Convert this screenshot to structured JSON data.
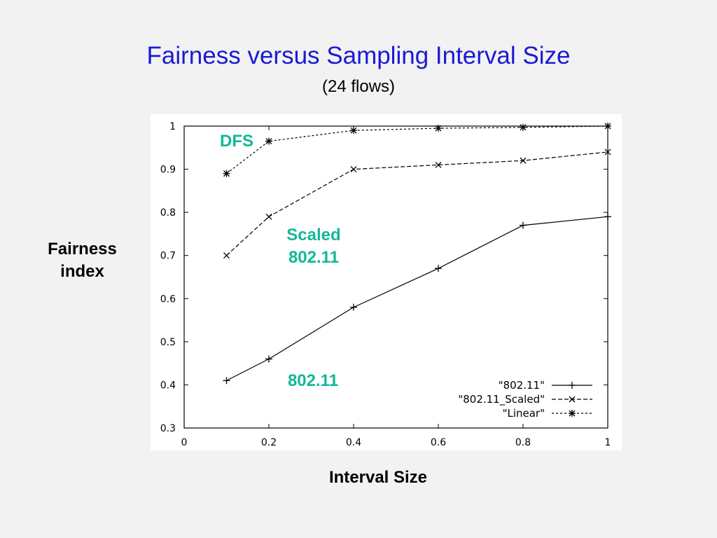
{
  "colors": {
    "title": "#1a1ad6",
    "annotation": "#12b897",
    "background": "#f2f2f2",
    "plot_background": "#ffffff"
  },
  "annotations": {
    "dfs": "DFS",
    "scaled_line1": "Scaled",
    "scaled_line2": "802.11",
    "plain": "802.11"
  },
  "chart_data": {
    "type": "line",
    "title": "Fairness versus Sampling Interval Size",
    "subtitle": "(24 flows)",
    "xlabel": "Interval Size",
    "ylabel_line1": "Fairness",
    "ylabel_line2": "index",
    "xlim": [
      0,
      1
    ],
    "ylim": [
      0.3,
      1
    ],
    "xticks": [
      0,
      0.2,
      0.4,
      0.6,
      0.8,
      1
    ],
    "xtick_labels": [
      "0",
      "0.2",
      "0.4",
      "0.6",
      "0.8",
      "1"
    ],
    "yticks": [
      0.3,
      0.4,
      0.5,
      0.6,
      0.7,
      0.8,
      0.9,
      1
    ],
    "ytick_labels": [
      "0.3",
      "0.4",
      "0.5",
      "0.6",
      "0.7",
      "0.8",
      "0.9",
      "1"
    ],
    "grid": false,
    "legend_position": "bottom-right",
    "x": [
      0.1,
      0.2,
      0.4,
      0.6,
      0.8,
      1.0
    ],
    "series": [
      {
        "name": "\"802.11\"",
        "marker": "plus",
        "dash": "none",
        "values": [
          0.41,
          0.46,
          0.58,
          0.67,
          0.77,
          0.79
        ]
      },
      {
        "name": "\"802.11_Scaled\"",
        "marker": "cross",
        "dash": "6,3",
        "values": [
          0.7,
          0.79,
          0.9,
          0.91,
          0.92,
          0.94
        ]
      },
      {
        "name": "\"Linear\"",
        "marker": "star",
        "dash": "3,3",
        "values": [
          0.89,
          0.965,
          0.99,
          0.995,
          0.997,
          1.0
        ]
      }
    ]
  }
}
